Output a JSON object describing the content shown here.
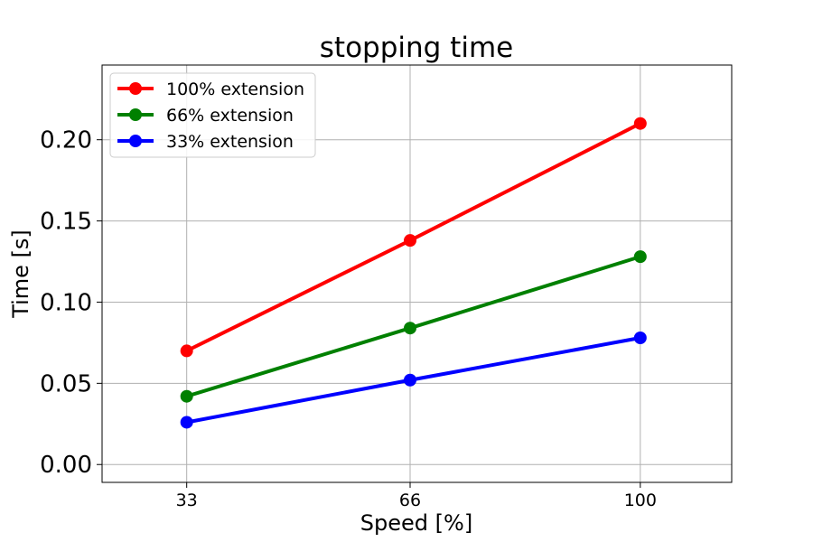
{
  "chart_data": {
    "type": "line",
    "title": "stopping time",
    "xlabel": "Speed [%]",
    "ylabel": "Time [s]",
    "categories": [
      "33",
      "66",
      "100"
    ],
    "x": [
      33,
      66,
      100
    ],
    "xlim": [
      20.5,
      113.5
    ],
    "ylim": [
      -0.011,
      0.246
    ],
    "yticks": [
      "0.00",
      "0.05",
      "0.10",
      "0.15",
      "0.20"
    ],
    "ytick_values": [
      0.0,
      0.05,
      0.1,
      0.15,
      0.2
    ],
    "grid": true,
    "legend_position": "top-left",
    "series": [
      {
        "name": "100% extension",
        "color": "#ff0000",
        "values": [
          0.07,
          0.138,
          0.21
        ]
      },
      {
        "name": "66% extension",
        "color": "#008000",
        "values": [
          0.042,
          0.084,
          0.128
        ]
      },
      {
        "name": "33% extension",
        "color": "#0000ff",
        "values": [
          0.026,
          0.052,
          0.078
        ]
      }
    ]
  }
}
